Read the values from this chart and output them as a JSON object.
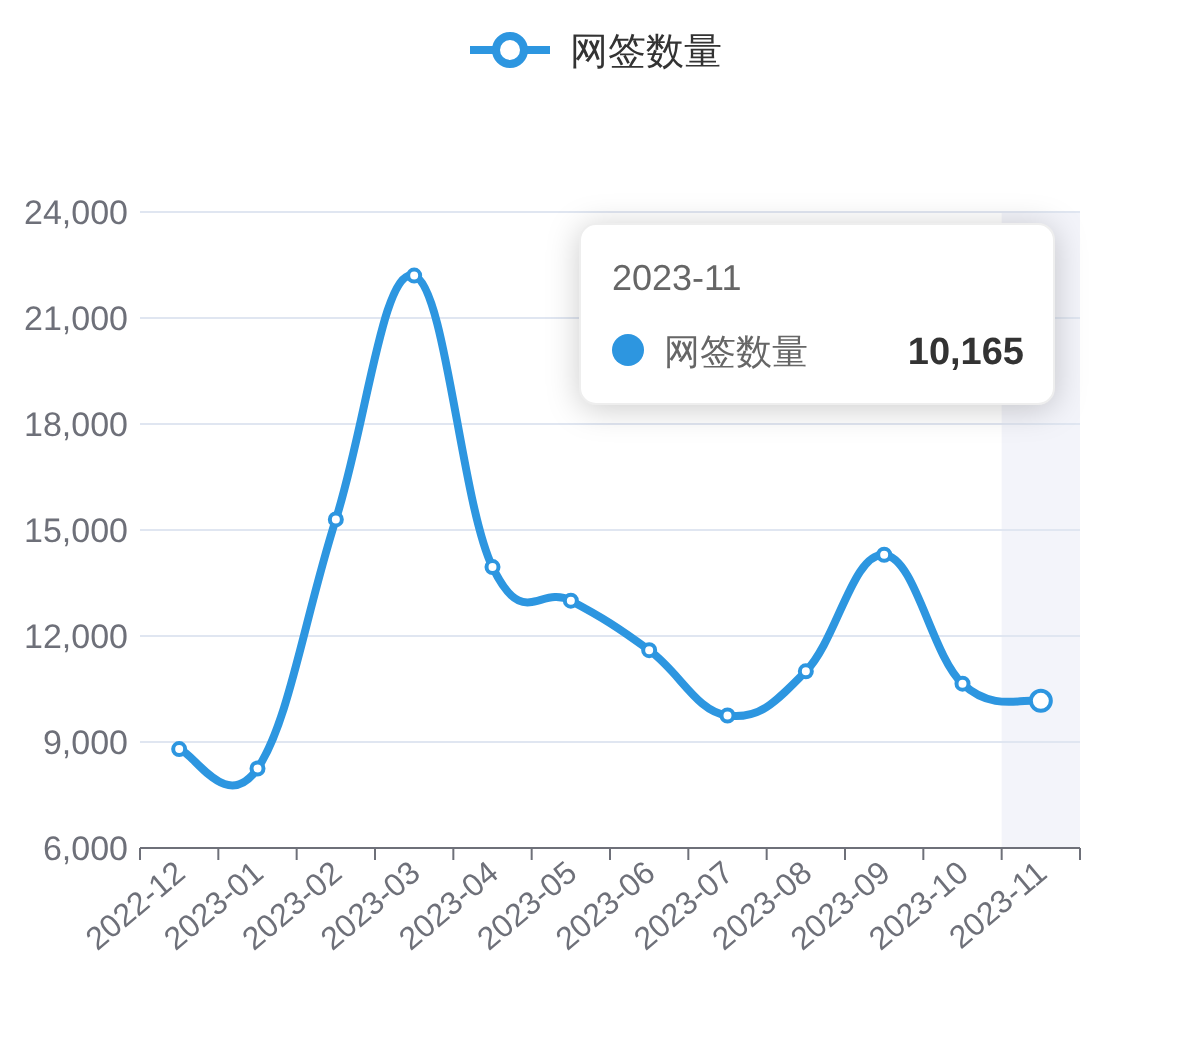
{
  "chart_data": {
    "type": "line",
    "categories": [
      "2022-12",
      "2023-01",
      "2023-02",
      "2023-03",
      "2023-04",
      "2023-05",
      "2023-06",
      "2023-07",
      "2023-08",
      "2023-09",
      "2023-10",
      "2023-11"
    ],
    "series": [
      {
        "name": "网签数量",
        "color": "#2d96e0",
        "values": [
          8800,
          8250,
          15300,
          22200,
          13950,
          13000,
          11600,
          9750,
          11000,
          14300,
          10650,
          10165
        ]
      }
    ],
    "ylim": [
      6000,
      24000
    ],
    "yticks": [
      {
        "value": 6000,
        "label": "6,000"
      },
      {
        "value": 9000,
        "label": "9,000"
      },
      {
        "value": 12000,
        "label": "12,000"
      },
      {
        "value": 15000,
        "label": "15,000"
      },
      {
        "value": 18000,
        "label": "18,000"
      },
      {
        "value": 21000,
        "label": "21,000"
      },
      {
        "value": 24000,
        "label": "24,000"
      }
    ],
    "grid": "y",
    "legend": "top",
    "marker": "circle",
    "line_style": "solid",
    "bands": [
      {
        "axis": "x",
        "from": "2023-11",
        "to": "2023-11",
        "color": "#f3f4fa"
      }
    ],
    "annotations": [
      "2023-11",
      "网签数量",
      "10,165"
    ]
  }
}
